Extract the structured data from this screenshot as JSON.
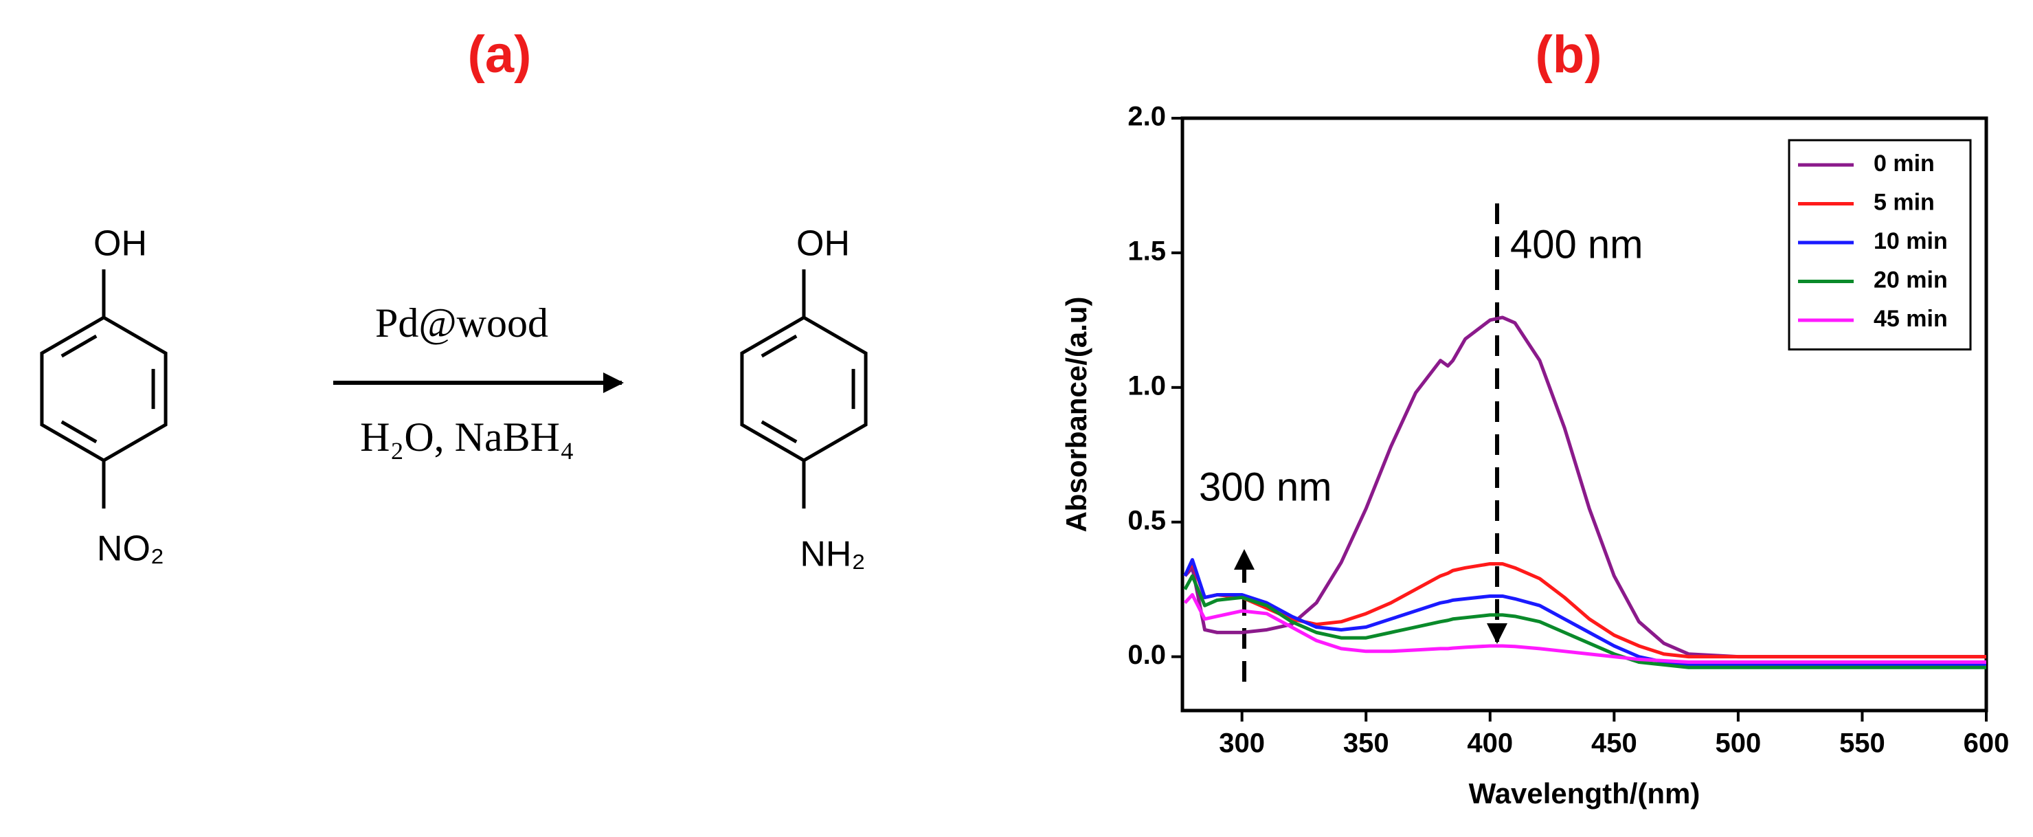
{
  "scheme": {
    "label": "(a)",
    "reactant_top": "OH",
    "reactant_bottom": "NO₂",
    "reagent_above": "Pd@wood",
    "reagent_below": "H₂O, NaBH₄",
    "product_top": "OH",
    "product_bottom": "NH₂"
  },
  "chart_data": {
    "type": "line",
    "title": "(b)",
    "x_label": "Wavelength/(nm)",
    "y_label": "Absorbance/(a.u)",
    "x": [
      277,
      280,
      285,
      290,
      300,
      310,
      320,
      330,
      340,
      350,
      360,
      370,
      380,
      383,
      385,
      390,
      400,
      405,
      410,
      420,
      430,
      440,
      450,
      460,
      470,
      480,
      500,
      550,
      600
    ],
    "series": [
      {
        "name": "0 min",
        "color": "#8b1a8b",
        "values": [
          0.3,
          0.33,
          0.1,
          0.09,
          0.09,
          0.1,
          0.12,
          0.2,
          0.35,
          0.55,
          0.78,
          0.98,
          1.1,
          1.08,
          1.1,
          1.18,
          1.25,
          1.26,
          1.24,
          1.1,
          0.85,
          0.55,
          0.3,
          0.13,
          0.05,
          0.01,
          0.0,
          0.0,
          0.0
        ]
      },
      {
        "name": "5 min",
        "color": "#ff1a1a",
        "values": [
          0.3,
          0.35,
          0.22,
          0.23,
          0.22,
          0.18,
          0.14,
          0.12,
          0.13,
          0.16,
          0.2,
          0.25,
          0.3,
          0.31,
          0.32,
          0.33,
          0.345,
          0.345,
          0.33,
          0.29,
          0.22,
          0.14,
          0.08,
          0.04,
          0.01,
          0.0,
          0.0,
          0.0,
          0.0
        ]
      },
      {
        "name": "10 min",
        "color": "#1a1aff",
        "values": [
          0.3,
          0.36,
          0.22,
          0.23,
          0.23,
          0.2,
          0.15,
          0.11,
          0.1,
          0.11,
          0.14,
          0.17,
          0.2,
          0.205,
          0.21,
          0.215,
          0.225,
          0.225,
          0.215,
          0.19,
          0.14,
          0.09,
          0.04,
          0.0,
          -0.02,
          -0.03,
          -0.03,
          -0.03,
          -0.03
        ]
      },
      {
        "name": "20 min",
        "color": "#0a8a2a",
        "values": [
          0.25,
          0.3,
          0.19,
          0.21,
          0.22,
          0.19,
          0.13,
          0.09,
          0.07,
          0.07,
          0.09,
          0.11,
          0.13,
          0.135,
          0.14,
          0.145,
          0.155,
          0.155,
          0.15,
          0.13,
          0.09,
          0.05,
          0.01,
          -0.02,
          -0.03,
          -0.04,
          -0.04,
          -0.04,
          -0.04
        ]
      },
      {
        "name": "45 min",
        "color": "#ff1aff",
        "values": [
          0.2,
          0.23,
          0.14,
          0.15,
          0.17,
          0.16,
          0.11,
          0.06,
          0.03,
          0.02,
          0.02,
          0.025,
          0.03,
          0.03,
          0.032,
          0.035,
          0.04,
          0.04,
          0.038,
          0.03,
          0.02,
          0.01,
          0.0,
          -0.01,
          -0.015,
          -0.02,
          -0.02,
          -0.02,
          -0.02
        ]
      }
    ],
    "xlim": [
      276,
      600
    ],
    "xticks": [
      300,
      350,
      400,
      450,
      500,
      550,
      600
    ],
    "ylim": [
      -0.2,
      2.0
    ],
    "yticks": [
      {
        "value": 0,
        "label": "0.0"
      },
      {
        "value": 0.5,
        "label": "0.5"
      },
      {
        "value": 1,
        "label": "1.0"
      },
      {
        "value": 1.5,
        "label": "1.5"
      },
      {
        "value": 2,
        "label": "2.0"
      }
    ],
    "annotations": [
      "400 nm",
      "300 nm"
    ],
    "legend": "upper right",
    "grid": false
  }
}
